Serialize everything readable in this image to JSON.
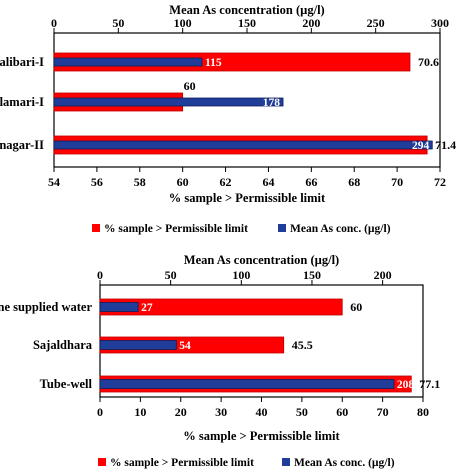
{
  "colors": {
    "pct": "#ff0000",
    "mean": "#1f3d99",
    "pct_edge": "#c00000",
    "mean_edge": "#0d1f5c"
  },
  "chart_data": [
    {
      "type": "bar",
      "orientation": "horizontal",
      "categories": [
        "alibari-I",
        "lamari-I",
        "nagar-II"
      ],
      "series": [
        {
          "name": "% sample > Permissible limit",
          "values": [
            70.6,
            60,
            71.4
          ],
          "axis": "bottom",
          "value_labels": [
            "70.6",
            "60",
            "71.4"
          ]
        },
        {
          "name": "Mean As conc. (µg/l)",
          "values": [
            115,
            178,
            294
          ],
          "axis": "top",
          "value_labels": [
            "115",
            "178",
            "294"
          ]
        }
      ],
      "xlabel_bottom": "% sample > Permissible limit",
      "xlabel_top": "Mean As concentration (µg/l)",
      "bottom_axis": {
        "range": [
          54,
          72
        ],
        "ticks": [
          "54",
          "56",
          "58",
          "60",
          "62",
          "64",
          "66",
          "68",
          "70",
          "72"
        ]
      },
      "top_axis": {
        "range": [
          0,
          300
        ],
        "ticks": [
          "0",
          "50",
          "100",
          "150",
          "200",
          "250",
          "300"
        ]
      },
      "grid": false,
      "legend": {
        "placement": "bottom"
      }
    },
    {
      "type": "bar",
      "orientation": "horizontal",
      "categories": [
        "ine supplied water",
        "Sajaldhara",
        "Tube-well"
      ],
      "series": [
        {
          "name": "% sample > Permissible limit",
          "values": [
            60,
            45.5,
            77.1
          ],
          "axis": "bottom",
          "value_labels": [
            "60",
            "45.5",
            "77.1"
          ]
        },
        {
          "name": "Mean As conc. (µg/l)",
          "values": [
            27,
            54,
            208
          ],
          "axis": "top",
          "value_labels": [
            "27",
            "54",
            "208"
          ]
        }
      ],
      "xlabel_bottom": "% sample > Permissible limit",
      "xlabel_top": "Mean As concentration (µg/l)",
      "bottom_axis": {
        "range": [
          0,
          80
        ],
        "ticks": [
          "0",
          "10",
          "20",
          "30",
          "40",
          "50",
          "60",
          "70",
          "80"
        ]
      },
      "top_axis": {
        "range": [
          0,
          228.57
        ],
        "ticks": [
          "0",
          "50",
          "100",
          "150",
          "200"
        ]
      },
      "grid": false,
      "legend": {
        "placement": "bottom"
      }
    }
  ]
}
